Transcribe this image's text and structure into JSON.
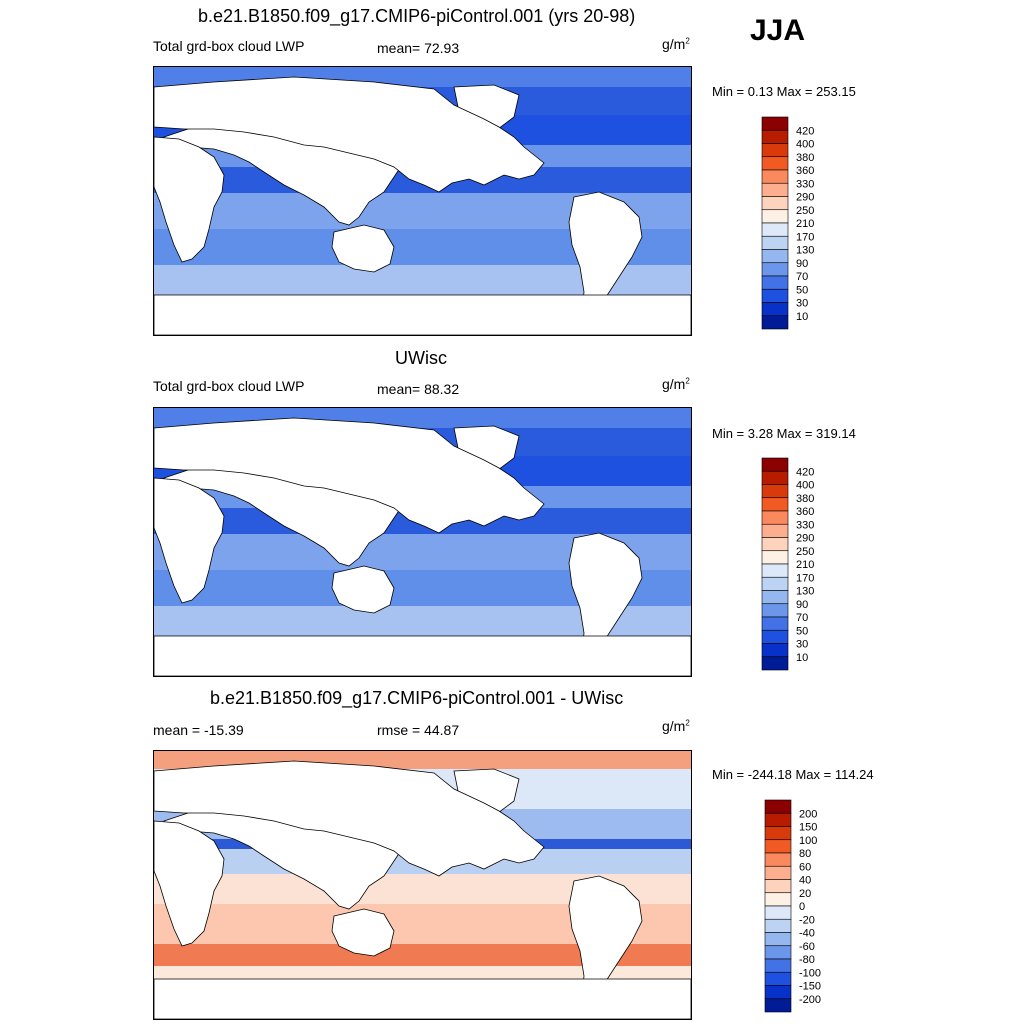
{
  "season": "JJA",
  "panels": [
    {
      "title": "b.e21.B1850.f09_g17.CMIP6-piControl.001 (yrs 20-98)",
      "left_label": "Total grd-box cloud LWP",
      "center_label": "mean=  72.93",
      "units": "g/m",
      "units_exp": "2",
      "minmax": "Min =   0.13 Max = 253.15",
      "colorbar": {
        "labels": [
          "420",
          "400",
          "380",
          "360",
          "330",
          "290",
          "250",
          "210",
          "170",
          "130",
          "90",
          "70",
          "50",
          "30",
          "10"
        ],
        "colors": [
          "#8b0000",
          "#b81c00",
          "#d83a0c",
          "#f25a24",
          "#fa8a5e",
          "#fcae8e",
          "#fdd3bd",
          "#fdf0e4",
          "#dde9f8",
          "#bcd3f3",
          "#95b7ef",
          "#6b96ea",
          "#4272e6",
          "#1f51e0",
          "#0731c8",
          "#001b96"
        ]
      }
    },
    {
      "title": "UWisc",
      "left_label": "Total grd-box cloud LWP",
      "center_label": "mean=  88.32",
      "units": "g/m",
      "units_exp": "2",
      "minmax": "Min =   3.28 Max = 319.14",
      "colorbar": {
        "labels": [
          "420",
          "400",
          "380",
          "360",
          "330",
          "290",
          "250",
          "210",
          "170",
          "130",
          "90",
          "70",
          "50",
          "30",
          "10"
        ],
        "colors": [
          "#8b0000",
          "#b81c00",
          "#d83a0c",
          "#f25a24",
          "#fa8a5e",
          "#fcae8e",
          "#fdd3bd",
          "#fdf0e4",
          "#dde9f8",
          "#bcd3f3",
          "#95b7ef",
          "#6b96ea",
          "#4272e6",
          "#1f51e0",
          "#0731c8",
          "#001b96"
        ]
      }
    },
    {
      "title": "b.e21.B1850.f09_g17.CMIP6-piControl.001 - UWisc",
      "left_label": "mean = -15.39",
      "center_label": "rmse =  44.87",
      "units": "g/m",
      "units_exp": "2",
      "minmax": "Min = -244.18 Max = 114.24",
      "colorbar": {
        "labels": [
          "200",
          "150",
          "100",
          "80",
          "60",
          "40",
          "20",
          "0",
          "-20",
          "-40",
          "-60",
          "-80",
          "-100",
          "-150",
          "-200"
        ],
        "colors": [
          "#8b0000",
          "#b81c00",
          "#d83a0c",
          "#f25a24",
          "#fa8a5e",
          "#fcae8e",
          "#fdd3bd",
          "#fdf0e4",
          "#dde9f8",
          "#bcd3f3",
          "#95b7ef",
          "#6b96ea",
          "#4272e6",
          "#1f51e0",
          "#0731c8",
          "#001b96"
        ]
      }
    }
  ]
}
